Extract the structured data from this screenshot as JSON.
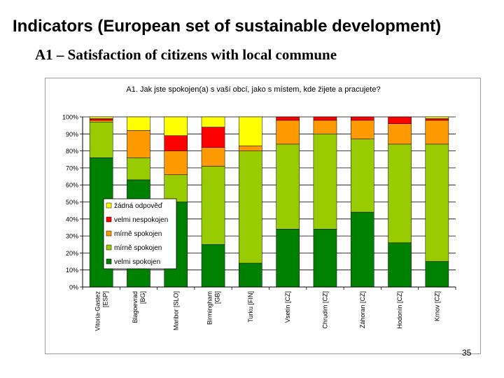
{
  "slide": {
    "title": "Indicators (European set of sustainable development)",
    "subtitle": "A1 – Satisfaction of citizens with local commune",
    "page_number": "35"
  },
  "chart_data": {
    "type": "bar",
    "stacked": true,
    "percent": true,
    "title": "A1. Jak jste spokojen(a) s vaší obcí, jako s místem, kde žijete a pracujete?",
    "xlabel": "",
    "ylabel": "",
    "ylim": [
      0,
      100
    ],
    "y_ticks": [
      "0%",
      "10%",
      "20%",
      "30%",
      "40%",
      "50%",
      "60%",
      "70%",
      "80%",
      "90%",
      "100%"
    ],
    "grid": true,
    "legend_position": "left-center",
    "categories": [
      "Vitoria-Gastez [ESP]",
      "Blagoevrad [BG]",
      "Maribor [SLO]",
      "Birmingham [GB]",
      "Turku [FIN]",
      "Vsetín [CZ]",
      "Chrudim [CZ]",
      "Záhoran [CZ]",
      "Hodonín [CZ]",
      "Krnov [CZ]"
    ],
    "series": [
      {
        "name": "velmi spokojen",
        "color": "#008000",
        "values": [
          76,
          63,
          50,
          25,
          14,
          34,
          34,
          44,
          26,
          15
        ]
      },
      {
        "name": "mírně spokojen",
        "color": "#99CC00",
        "values": [
          21,
          13,
          16,
          46,
          66,
          50,
          56,
          43,
          58,
          69
        ]
      },
      {
        "name": "mírně spokojen",
        "color": "#FF9900",
        "values": [
          1,
          16,
          14,
          11,
          3,
          14,
          8,
          11,
          12,
          14
        ]
      },
      {
        "name": "velmi nespokojen",
        "color": "#FF0000",
        "values": [
          1,
          0,
          9,
          12,
          0,
          2,
          2,
          2,
          4,
          1
        ]
      },
      {
        "name": "žádná odpověď",
        "color": "#FFFF00",
        "values": [
          1,
          8,
          11,
          6,
          17,
          0,
          0,
          0,
          0,
          1
        ]
      }
    ],
    "legend_order": [
      4,
      3,
      2,
      1,
      0
    ]
  }
}
